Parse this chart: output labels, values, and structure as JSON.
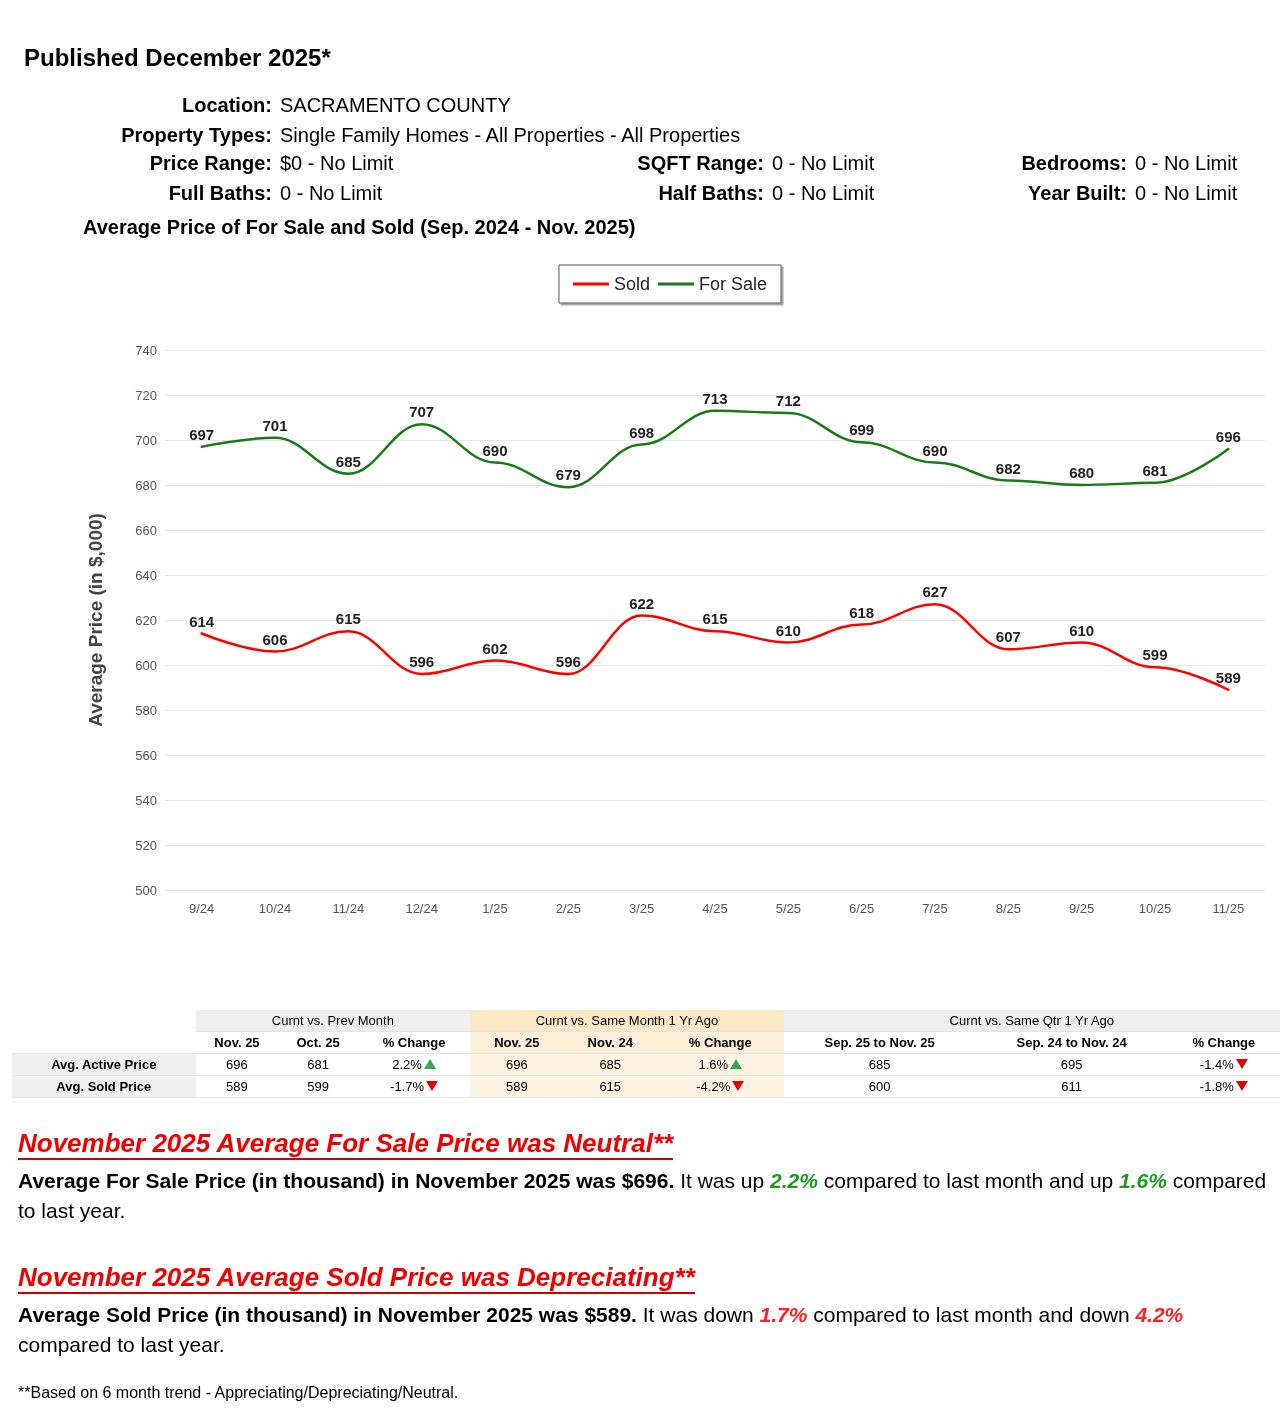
{
  "chart_data": {
    "type": "line",
    "title": "Average Price of For Sale and Sold (Sep. 2024 - Nov. 2025)",
    "subtitle": "Published December 2025*",
    "ylabel": "Average Price (in $,000)",
    "categories": [
      "9/24",
      "10/24",
      "11/24",
      "12/24",
      "1/25",
      "2/25",
      "3/25",
      "4/25",
      "5/25",
      "6/25",
      "7/25",
      "8/25",
      "9/25",
      "10/25",
      "11/25"
    ],
    "series": [
      {
        "name": "Sold",
        "color": "#ff0000",
        "values": [
          614,
          606,
          615,
          596,
          602,
          596,
          622,
          615,
          610,
          618,
          627,
          607,
          610,
          599,
          589
        ]
      },
      {
        "name": "For Sale",
        "color": "#1a7a1a",
        "values": [
          697,
          701,
          685,
          707,
          690,
          679,
          698,
          713,
          712,
          699,
          690,
          682,
          680,
          681,
          696
        ]
      }
    ],
    "ylim": [
      500,
      740
    ],
    "yticks": [
      500,
      520,
      540,
      560,
      580,
      600,
      620,
      640,
      660,
      680,
      700,
      720,
      740
    ],
    "grid": "y",
    "legend": "top",
    "marker": "none",
    "line_style": "solid",
    "data_labels": true,
    "annotations": [
      "Location:",
      "SACRAMENTO COUNTY",
      "Property Types:",
      "Single Family Homes - All Properties - All Properties",
      "Price Range:",
      "$0 - No Limit",
      "SQFT Range:",
      "0 - No Limit",
      "Bedrooms:",
      "0 - No Limit",
      "Full Baths:",
      "0 - No Limit",
      "Half Baths:",
      "0 - No Limit",
      "Year Built:",
      "0 - No Limit",
      "Curnt vs. Prev Month",
      "Curnt vs. Same Month 1 Yr Ago",
      "Curnt vs. Same Qtr 1 Yr Ago",
      "Nov. 25",
      "Oct. 25",
      "% Change",
      "Nov. 25",
      "Nov. 24",
      "% Change",
      "Sep. 25 to Nov. 25",
      "Sep. 24 to Nov. 24",
      "% Change",
      "Avg. Active Price",
      "696",
      "681",
      "2.2%",
      "696",
      "685",
      "1.6%",
      "685",
      "695",
      "-1.4%",
      "Avg. Sold Price",
      "589",
      "599",
      "-1.7%",
      "589",
      "615",
      "-4.2%",
      "600",
      "611",
      "-1.8%",
      "November 2025 Average For Sale Price was Neutral**",
      "Average For Sale Price (in thousand) in November 2025 was $696.",
      " It was up ",
      "2.2%",
      " compared to last month and up ",
      "1.6%",
      " compared to last year.",
      "November 2025 Average Sold Price was Depreciating**",
      "Average Sold Price (in thousand) in November 2025 was $589.",
      " It was down ",
      "1.7%",
      " compared to last month and down ",
      "4.2%",
      " compared to last year.",
      "**Based on 6 month trend - Appreciating/Depreciating/Neutral."
    ]
  }
}
